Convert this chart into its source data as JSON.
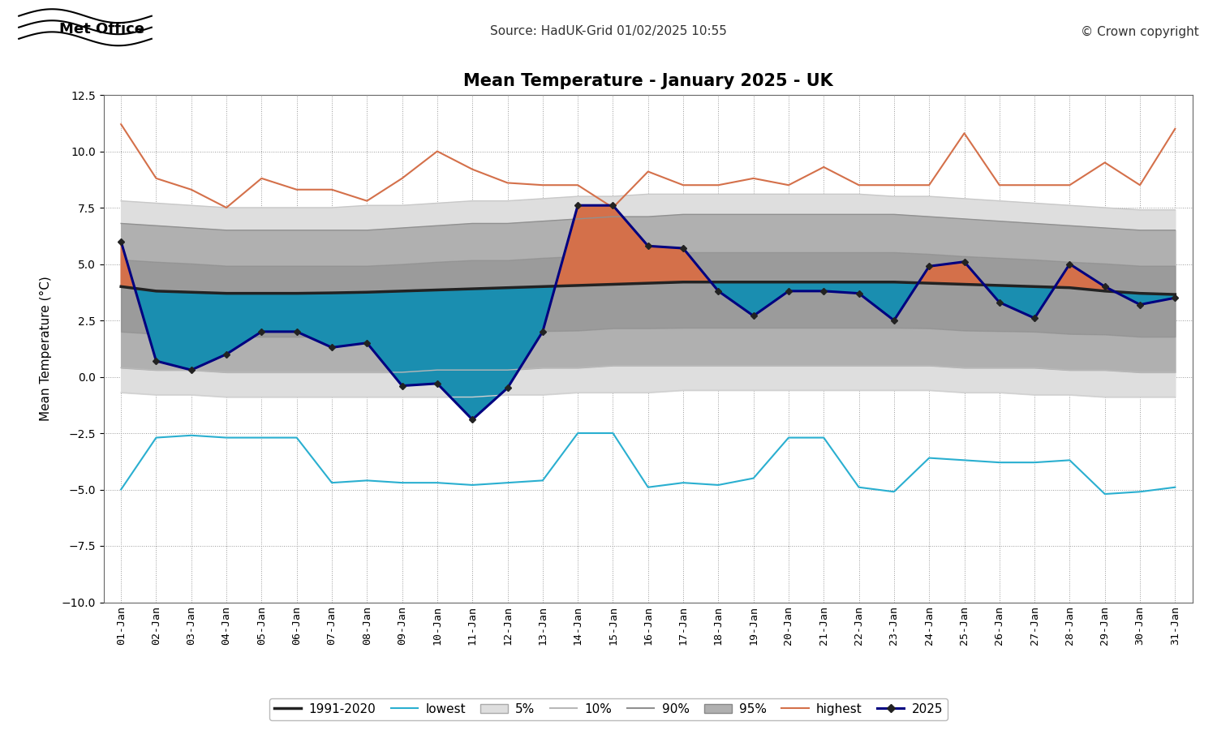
{
  "title": "Mean Temperature - January 2025 - UK",
  "source_text": "Source: HadUK-Grid 01/02/2025 10:55",
  "copyright_text": "© Crown copyright",
  "ylabel": "Mean Temperature (°C)",
  "ylim": [
    -10.0,
    12.5
  ],
  "yticks": [
    -10.0,
    -7.5,
    -5.0,
    -2.5,
    0.0,
    2.5,
    5.0,
    7.5,
    10.0,
    12.5
  ],
  "labels": [
    "01-Jan",
    "02-Jan",
    "03-Jan",
    "04-Jan",
    "05-Jan",
    "06-Jan",
    "07-Jan",
    "08-Jan",
    "09-Jan",
    "10-Jan",
    "11-Jan",
    "12-Jan",
    "13-Jan",
    "14-Jan",
    "15-Jan",
    "16-Jan",
    "17-Jan",
    "18-Jan",
    "19-Jan",
    "20-Jan",
    "21-Jan",
    "22-Jan",
    "23-Jan",
    "24-Jan",
    "25-Jan",
    "26-Jan",
    "27-Jan",
    "28-Jan",
    "29-Jan",
    "30-Jan",
    "31-Jan"
  ],
  "mean_1991_2020": [
    4.0,
    3.8,
    3.75,
    3.7,
    3.7,
    3.7,
    3.72,
    3.75,
    3.8,
    3.85,
    3.9,
    3.95,
    4.0,
    4.05,
    4.1,
    4.15,
    4.2,
    4.2,
    4.2,
    4.2,
    4.2,
    4.2,
    4.2,
    4.15,
    4.1,
    4.05,
    4.0,
    3.95,
    3.8,
    3.7,
    3.65
  ],
  "lowest": [
    -5.0,
    -2.7,
    -2.6,
    -2.7,
    -2.7,
    -2.7,
    -4.7,
    -4.6,
    -4.7,
    -4.7,
    -4.8,
    -4.7,
    -4.6,
    -2.5,
    -2.5,
    -4.9,
    -4.7,
    -4.8,
    -4.5,
    -2.7,
    -2.7,
    -4.9,
    -5.1,
    -3.6,
    -3.7,
    -3.8,
    -3.8,
    -3.7,
    -5.2,
    -5.1,
    -4.9
  ],
  "pct5": [
    -0.7,
    -0.8,
    -0.8,
    -0.9,
    -0.9,
    -0.9,
    -0.9,
    -0.9,
    -0.9,
    -0.9,
    -0.9,
    -0.8,
    -0.8,
    -0.7,
    -0.7,
    -0.7,
    -0.6,
    -0.6,
    -0.6,
    -0.6,
    -0.6,
    -0.6,
    -0.6,
    -0.6,
    -0.7,
    -0.7,
    -0.8,
    -0.8,
    -0.9,
    -0.9,
    -0.9
  ],
  "pct10": [
    0.4,
    0.3,
    0.3,
    0.2,
    0.2,
    0.2,
    0.2,
    0.2,
    0.2,
    0.3,
    0.3,
    0.3,
    0.4,
    0.4,
    0.5,
    0.5,
    0.5,
    0.5,
    0.5,
    0.5,
    0.5,
    0.5,
    0.5,
    0.5,
    0.4,
    0.4,
    0.4,
    0.3,
    0.3,
    0.2,
    0.2
  ],
  "pct90": [
    6.8,
    6.7,
    6.6,
    6.5,
    6.5,
    6.5,
    6.5,
    6.5,
    6.6,
    6.7,
    6.8,
    6.8,
    6.9,
    7.0,
    7.1,
    7.1,
    7.2,
    7.2,
    7.2,
    7.2,
    7.2,
    7.2,
    7.2,
    7.1,
    7.0,
    6.9,
    6.8,
    6.7,
    6.6,
    6.5,
    6.5
  ],
  "pct95": [
    7.8,
    7.7,
    7.6,
    7.5,
    7.5,
    7.5,
    7.5,
    7.6,
    7.6,
    7.7,
    7.8,
    7.8,
    7.9,
    8.0,
    8.0,
    8.1,
    8.1,
    8.1,
    8.1,
    8.1,
    8.1,
    8.1,
    8.0,
    8.0,
    7.9,
    7.8,
    7.7,
    7.6,
    7.5,
    7.4,
    7.4
  ],
  "highest": [
    11.2,
    8.8,
    8.3,
    7.5,
    8.8,
    8.3,
    8.3,
    7.8,
    8.8,
    10.0,
    9.2,
    8.6,
    8.5,
    8.5,
    7.5,
    9.1,
    8.5,
    8.5,
    8.8,
    8.5,
    9.3,
    8.5,
    8.5,
    8.5,
    10.8,
    8.5,
    8.5,
    8.5,
    9.5,
    8.5,
    11.0
  ],
  "obs_2025": [
    6.0,
    0.7,
    0.3,
    1.0,
    2.0,
    2.0,
    1.3,
    1.5,
    -0.4,
    -0.3,
    -1.9,
    -0.5,
    2.0,
    7.6,
    7.6,
    5.8,
    5.7,
    3.8,
    2.7,
    3.8,
    3.8,
    3.7,
    2.5,
    4.9,
    5.1,
    3.3,
    2.6,
    5.0,
    4.0,
    3.2,
    3.5
  ],
  "bg_color": "#ffffff",
  "color_band_outer": "#e0e0e0",
  "color_band_mid": "#b8b8b8",
  "color_band_inner": "#888888",
  "color_mean": "#222222",
  "color_lowest": "#2aafd0",
  "color_highest": "#d4704a",
  "color_2025": "#000080",
  "color_fill_cold": "#1a8aaa",
  "color_fill_warm": "#d4704a",
  "color_10pct_line": "#c0c0c0",
  "color_90pct_line": "#909090"
}
